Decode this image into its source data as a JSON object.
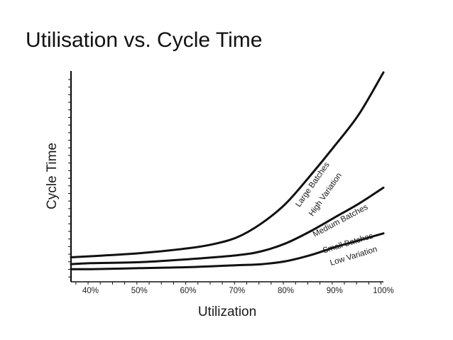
{
  "title": "Utilisation vs. Cycle Time",
  "chart_data": {
    "type": "line",
    "xlabel": "Utilization",
    "ylabel": "Cycle Time",
    "xlim": [
      36,
      100
    ],
    "ylim": [
      0,
      100
    ],
    "x_ticks": [
      "40%",
      "50%",
      "60%",
      "70%",
      "80%",
      "90%",
      "100%"
    ],
    "y_tick_labels_shown": false,
    "grid": false,
    "series": [
      {
        "labels": [
          "Large Batches",
          "High Variation"
        ],
        "x": [
          36,
          40,
          50,
          60,
          65,
          70,
          75,
          80,
          85,
          90,
          95,
          100
        ],
        "y": [
          7,
          7.5,
          9,
          11.5,
          13.5,
          17,
          24,
          34,
          48,
          63,
          79,
          100
        ]
      },
      {
        "labels": [
          "Medium Batches"
        ],
        "x": [
          36,
          40,
          50,
          60,
          70,
          75,
          80,
          85,
          90,
          95,
          100
        ],
        "y": [
          3.5,
          4,
          4.5,
          6,
          8,
          10,
          14,
          20,
          27,
          34,
          42
        ]
      },
      {
        "labels": [
          "Small Batches",
          "Low Variation"
        ],
        "x": [
          36,
          40,
          50,
          60,
          70,
          75,
          80,
          85,
          90,
          95,
          100
        ],
        "y": [
          1,
          1,
          1.5,
          2,
          3,
          3.5,
          5,
          8,
          12,
          15.5,
          19
        ]
      }
    ]
  }
}
